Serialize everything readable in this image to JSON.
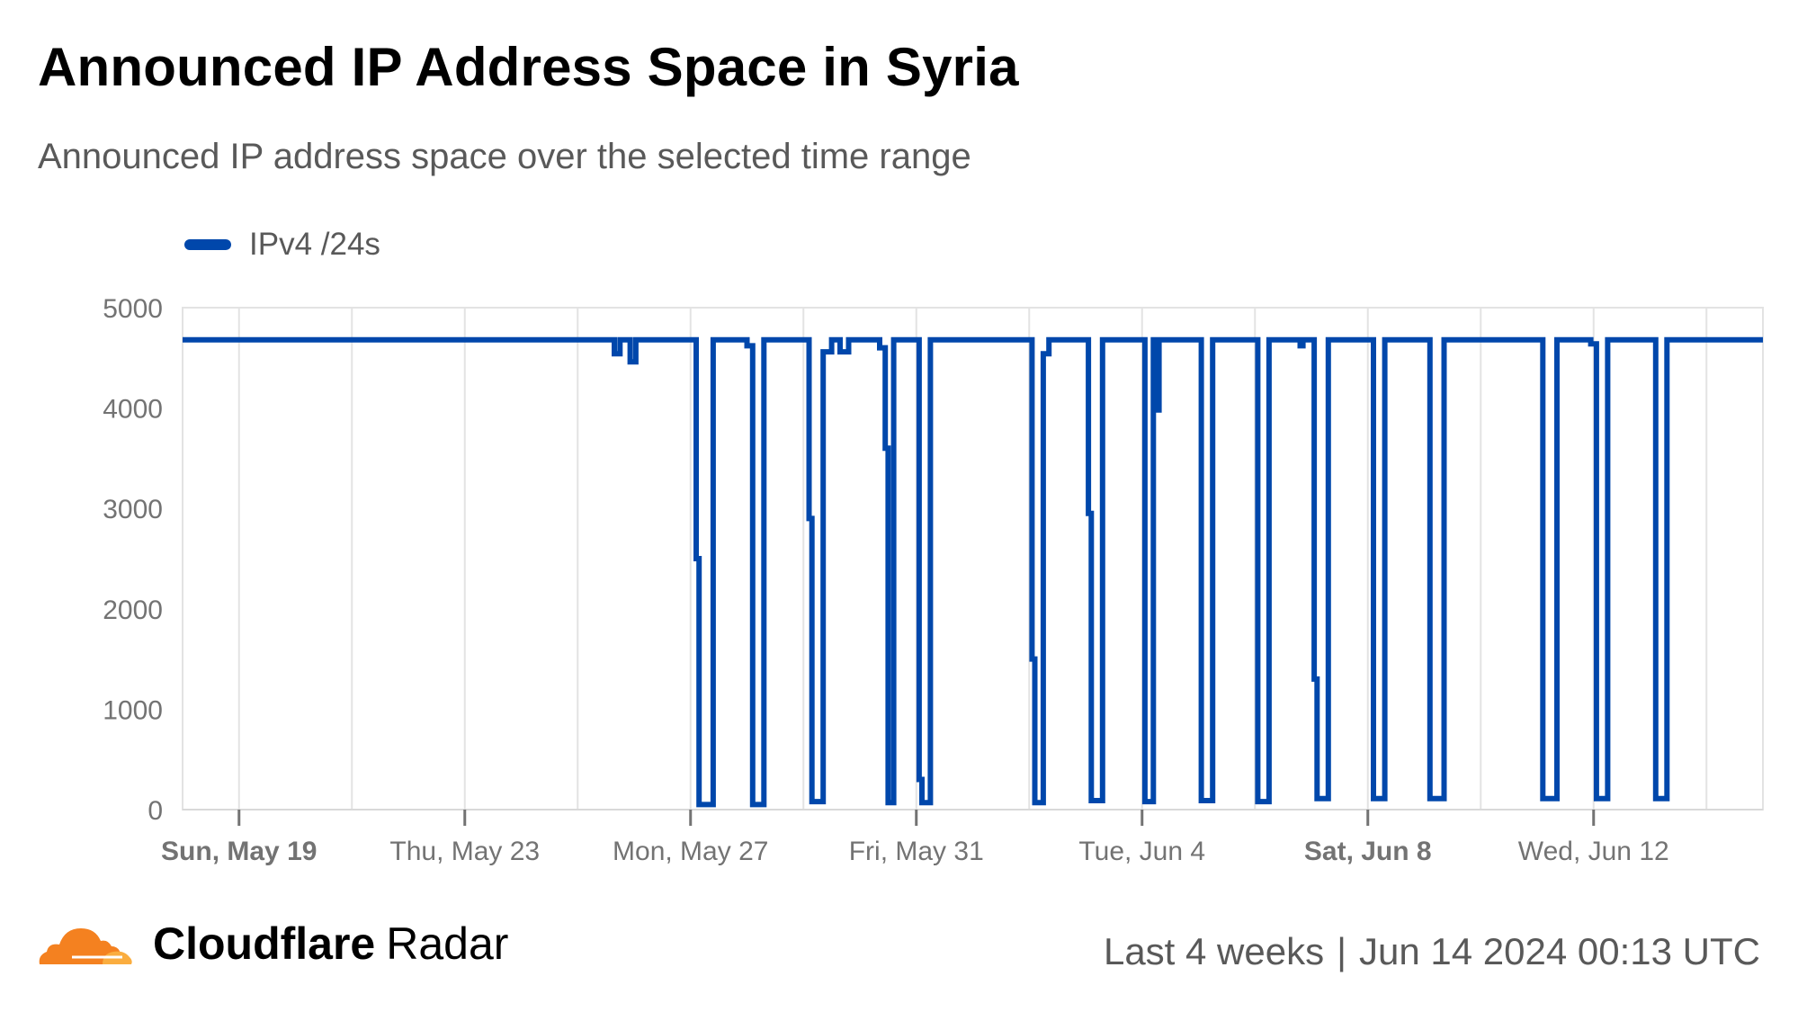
{
  "header": {
    "title": "Announced IP Address Space in Syria",
    "subtitle": "Announced IP address space over the selected time range"
  },
  "footer": {
    "brand_bold": "Cloudflare",
    "brand_light": "Radar",
    "range": "Last 4 weeks",
    "separator": "|",
    "timestamp": "Jun 14 2024 00:13 UTC",
    "logo_icon": "cloudflare-cloud-icon",
    "logo_colors": [
      "#f48120",
      "#faad3f"
    ]
  },
  "chart_data": {
    "type": "line",
    "step": true,
    "x_unit": "days since Sun, May 19 2024",
    "xlim": [
      -1,
      27
    ],
    "ylim": [
      0,
      5000
    ],
    "y_ticks": [
      0,
      1000,
      2000,
      3000,
      4000,
      5000
    ],
    "grid": true,
    "legend_position": "top-left",
    "x_ticks": [
      {
        "x": 0,
        "label": "Sun, May 19",
        "bold": true
      },
      {
        "x": 4,
        "label": "Thu, May 23",
        "bold": false
      },
      {
        "x": 8,
        "label": "Mon, May 27",
        "bold": false
      },
      {
        "x": 12,
        "label": "Fri, May 31",
        "bold": false
      },
      {
        "x": 16,
        "label": "Tue, Jun 4",
        "bold": false
      },
      {
        "x": 20,
        "label": "Sat, Jun 8",
        "bold": true
      },
      {
        "x": 24,
        "label": "Wed, Jun 12",
        "bold": false
      }
    ],
    "series": [
      {
        "name": "IPv4 /24s",
        "color": "#0047ab",
        "points": [
          [
            -1,
            4680
          ],
          [
            6.65,
            4680
          ],
          [
            6.65,
            4540
          ],
          [
            6.75,
            4540
          ],
          [
            6.75,
            4680
          ],
          [
            6.93,
            4680
          ],
          [
            6.93,
            4460
          ],
          [
            7.03,
            4460
          ],
          [
            7.03,
            4680
          ],
          [
            8.1,
            4680
          ],
          [
            8.1,
            2500
          ],
          [
            8.15,
            2500
          ],
          [
            8.15,
            50
          ],
          [
            8.4,
            50
          ],
          [
            8.4,
            4680
          ],
          [
            9.0,
            4680
          ],
          [
            9.0,
            4620
          ],
          [
            9.1,
            4620
          ],
          [
            9.1,
            50
          ],
          [
            9.3,
            50
          ],
          [
            9.3,
            4680
          ],
          [
            10.1,
            4680
          ],
          [
            10.1,
            2900
          ],
          [
            10.15,
            2900
          ],
          [
            10.15,
            80
          ],
          [
            10.35,
            80
          ],
          [
            10.35,
            4560
          ],
          [
            10.5,
            4560
          ],
          [
            10.5,
            4680
          ],
          [
            10.65,
            4680
          ],
          [
            10.65,
            4560
          ],
          [
            10.8,
            4560
          ],
          [
            10.8,
            4680
          ],
          [
            11.35,
            4680
          ],
          [
            11.35,
            4600
          ],
          [
            11.45,
            4600
          ],
          [
            11.45,
            3600
          ],
          [
            11.5,
            3600
          ],
          [
            11.5,
            70
          ],
          [
            11.6,
            70
          ],
          [
            11.6,
            4680
          ],
          [
            12.05,
            4680
          ],
          [
            12.05,
            300
          ],
          [
            12.1,
            300
          ],
          [
            12.1,
            70
          ],
          [
            12.25,
            70
          ],
          [
            12.25,
            4680
          ],
          [
            14.05,
            4680
          ],
          [
            14.05,
            1500
          ],
          [
            14.1,
            1500
          ],
          [
            14.1,
            70
          ],
          [
            14.25,
            70
          ],
          [
            14.25,
            4540
          ],
          [
            14.35,
            4540
          ],
          [
            14.35,
            4680
          ],
          [
            15.05,
            4680
          ],
          [
            15.05,
            2950
          ],
          [
            15.1,
            2950
          ],
          [
            15.1,
            90
          ],
          [
            15.3,
            90
          ],
          [
            15.3,
            4680
          ],
          [
            16.05,
            4680
          ],
          [
            16.05,
            80
          ],
          [
            16.2,
            80
          ],
          [
            16.2,
            4680
          ],
          [
            16.25,
            4680
          ],
          [
            16.25,
            3980
          ],
          [
            16.3,
            3980
          ],
          [
            16.3,
            4680
          ],
          [
            17.05,
            4680
          ],
          [
            17.05,
            90
          ],
          [
            17.25,
            90
          ],
          [
            17.25,
            4680
          ],
          [
            18.05,
            4680
          ],
          [
            18.05,
            80
          ],
          [
            18.25,
            80
          ],
          [
            18.25,
            4680
          ],
          [
            18.8,
            4680
          ],
          [
            18.8,
            4620
          ],
          [
            18.85,
            4620
          ],
          [
            18.85,
            4680
          ],
          [
            19.05,
            4680
          ],
          [
            19.05,
            1300
          ],
          [
            19.1,
            1300
          ],
          [
            19.1,
            110
          ],
          [
            19.3,
            110
          ],
          [
            19.3,
            4680
          ],
          [
            20.1,
            4680
          ],
          [
            20.1,
            110
          ],
          [
            20.3,
            110
          ],
          [
            20.3,
            4680
          ],
          [
            21.1,
            4680
          ],
          [
            21.1,
            110
          ],
          [
            21.35,
            110
          ],
          [
            21.35,
            4680
          ],
          [
            23.1,
            4680
          ],
          [
            23.1,
            110
          ],
          [
            23.35,
            110
          ],
          [
            23.35,
            4680
          ],
          [
            23.95,
            4680
          ],
          [
            23.95,
            4640
          ],
          [
            24.05,
            4640
          ],
          [
            24.05,
            110
          ],
          [
            24.25,
            110
          ],
          [
            24.25,
            4680
          ],
          [
            25.1,
            4680
          ],
          [
            25.1,
            110
          ],
          [
            25.3,
            110
          ],
          [
            25.3,
            4680
          ],
          [
            27,
            4680
          ]
        ]
      }
    ]
  }
}
